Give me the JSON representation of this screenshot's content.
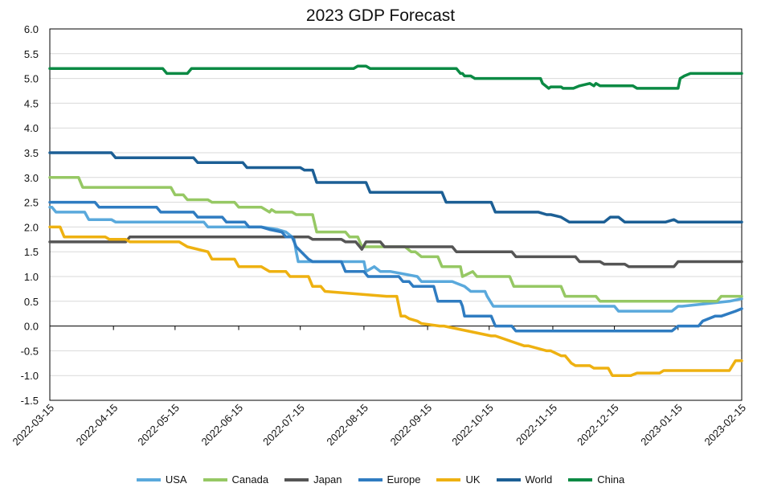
{
  "chart_data": {
    "type": "line",
    "title": "2023 GDP Forecast",
    "xlabel": "",
    "ylabel": "",
    "ylim": [
      -1.5,
      6.0
    ],
    "y_ticks": [
      "6.0",
      "5.5",
      "5.0",
      "4.5",
      "4.0",
      "3.5",
      "3.0",
      "2.5",
      "2.0",
      "1.5",
      "1.0",
      "0.5",
      "0.0",
      "-0.5",
      "-1.0",
      "-1.5"
    ],
    "x_ticks": [
      "2022-03-15",
      "2022-04-15",
      "2022-05-15",
      "2022-06-15",
      "2022-07-15",
      "2022-08-15",
      "2022-09-15",
      "2022-10-15",
      "2022-11-15",
      "2022-12-15",
      "2023-01-15",
      "2023-02-15"
    ],
    "grid": "horizontal",
    "legend_position": "bottom",
    "series": [
      {
        "name": "USA",
        "color": "#5aa9dc",
        "x": [
          "2022-03-15",
          "2022-03-16",
          "2022-03-18",
          "2022-04-01",
          "2022-04-03",
          "2022-04-14",
          "2022-04-16",
          "2022-05-29",
          "2022-05-31",
          "2022-06-26",
          "2022-07-04",
          "2022-07-08",
          "2022-07-11",
          "2022-07-12",
          "2022-07-13",
          "2022-07-14",
          "2022-08-15",
          "2022-08-16",
          "2022-08-20",
          "2022-08-23",
          "2022-08-28",
          "2022-09-10",
          "2022-09-12",
          "2022-09-27",
          "2022-09-30",
          "2022-10-03",
          "2022-10-06",
          "2022-10-13",
          "2022-10-14",
          "2022-10-17",
          "2022-12-15",
          "2022-12-17",
          "2023-01-10",
          "2023-01-12",
          "2023-01-15",
          "2023-01-17",
          "2023-02-09",
          "2023-02-15"
        ],
        "values": [
          2.4,
          2.4,
          2.3,
          2.3,
          2.15,
          2.15,
          2.1,
          2.1,
          2.0,
          2.0,
          1.95,
          1.9,
          1.8,
          1.75,
          1.5,
          1.3,
          1.3,
          1.1,
          1.2,
          1.1,
          1.1,
          1.0,
          0.9,
          0.9,
          0.85,
          0.8,
          0.7,
          0.7,
          0.6,
          0.4,
          0.4,
          0.3,
          0.3,
          0.3,
          0.4,
          0.4,
          0.5,
          0.55
        ]
      },
      {
        "name": "Canada",
        "color": "#96c864",
        "x": [
          "2022-03-15",
          "2022-03-29",
          "2022-03-31",
          "2022-05-13",
          "2022-05-15",
          "2022-05-19",
          "2022-05-21",
          "2022-05-31",
          "2022-06-02",
          "2022-06-13",
          "2022-06-15",
          "2022-06-26",
          "2022-06-30",
          "2022-07-01",
          "2022-07-03",
          "2022-07-11",
          "2022-07-13",
          "2022-07-21",
          "2022-07-23",
          "2022-08-06",
          "2022-08-08",
          "2022-08-12",
          "2022-08-14",
          "2022-09-04",
          "2022-09-07",
          "2022-09-09",
          "2022-09-12",
          "2022-09-20",
          "2022-09-22",
          "2022-10-01",
          "2022-10-02",
          "2022-10-07",
          "2022-10-09",
          "2022-10-25",
          "2022-10-27",
          "2022-11-19",
          "2022-11-21",
          "2022-12-06",
          "2022-12-08",
          "2023-02-03",
          "2023-02-05",
          "2023-02-15"
        ],
        "values": [
          3.0,
          3.0,
          2.8,
          2.8,
          2.65,
          2.65,
          2.55,
          2.55,
          2.5,
          2.5,
          2.4,
          2.4,
          2.3,
          2.35,
          2.3,
          2.3,
          2.25,
          2.25,
          1.9,
          1.9,
          1.8,
          1.8,
          1.6,
          1.6,
          1.5,
          1.5,
          1.4,
          1.4,
          1.2,
          1.2,
          1.0,
          1.1,
          1.0,
          1.0,
          0.8,
          0.8,
          0.6,
          0.6,
          0.5,
          0.5,
          0.6,
          0.6
        ]
      },
      {
        "name": "Japan",
        "color": "#555555",
        "x": [
          "2022-03-15",
          "2022-04-21",
          "2022-04-23",
          "2022-07-19",
          "2022-07-21",
          "2022-08-04",
          "2022-08-06",
          "2022-08-11",
          "2022-08-13",
          "2022-08-14",
          "2022-08-16",
          "2022-08-23",
          "2022-08-25",
          "2022-09-27",
          "2022-09-29",
          "2022-10-26",
          "2022-10-28",
          "2022-11-26",
          "2022-11-28",
          "2022-12-08",
          "2022-12-10",
          "2022-12-20",
          "2022-12-22",
          "2023-01-13",
          "2023-01-15",
          "2023-02-15"
        ],
        "values": [
          1.7,
          1.7,
          1.8,
          1.8,
          1.75,
          1.75,
          1.7,
          1.7,
          1.6,
          1.55,
          1.7,
          1.7,
          1.6,
          1.6,
          1.5,
          1.5,
          1.4,
          1.4,
          1.3,
          1.3,
          1.25,
          1.25,
          1.2,
          1.2,
          1.3,
          1.3
        ]
      },
      {
        "name": "Europe",
        "color": "#2f7cc1",
        "x": [
          "2022-03-15",
          "2022-04-06",
          "2022-04-08",
          "2022-05-06",
          "2022-05-08",
          "2022-05-24",
          "2022-05-26",
          "2022-06-07",
          "2022-06-09",
          "2022-06-18",
          "2022-06-20",
          "2022-06-26",
          "2022-06-30",
          "2022-07-06",
          "2022-07-08",
          "2022-07-11",
          "2022-07-13",
          "2022-07-19",
          "2022-07-21",
          "2022-08-04",
          "2022-08-06",
          "2022-08-15",
          "2022-08-17",
          "2022-09-01",
          "2022-09-03",
          "2022-09-06",
          "2022-09-08",
          "2022-09-18",
          "2022-09-20",
          "2022-10-01",
          "2022-10-02",
          "2022-10-03",
          "2022-10-05",
          "2022-10-16",
          "2022-10-18",
          "2022-10-26",
          "2022-10-28",
          "2023-01-12",
          "2023-01-15",
          "2023-01-25",
          "2023-01-27",
          "2023-02-02",
          "2023-02-05",
          "2023-02-12",
          "2023-02-15"
        ],
        "values": [
          2.5,
          2.5,
          2.4,
          2.4,
          2.3,
          2.3,
          2.2,
          2.2,
          2.1,
          2.1,
          2.0,
          2.0,
          1.95,
          1.9,
          1.8,
          1.8,
          1.6,
          1.35,
          1.3,
          1.3,
          1.1,
          1.1,
          1.0,
          1.0,
          0.9,
          0.9,
          0.8,
          0.8,
          0.5,
          0.5,
          0.4,
          0.2,
          0.2,
          0.2,
          0.0,
          0.0,
          -0.1,
          -0.1,
          0.0,
          0.0,
          0.1,
          0.2,
          0.2,
          0.3,
          0.35
        ]
      },
      {
        "name": "UK",
        "color": "#eeb111",
        "x": [
          "2022-03-15",
          "2022-03-20",
          "2022-03-22",
          "2022-04-11",
          "2022-04-13",
          "2022-04-21",
          "2022-04-23",
          "2022-05-17",
          "2022-05-21",
          "2022-05-31",
          "2022-06-02",
          "2022-06-13",
          "2022-06-15",
          "2022-06-26",
          "2022-06-30",
          "2022-07-08",
          "2022-07-10",
          "2022-07-19",
          "2022-07-21",
          "2022-07-25",
          "2022-07-27",
          "2022-08-26",
          "2022-08-28",
          "2022-08-31",
          "2022-09-02",
          "2022-09-04",
          "2022-09-06",
          "2022-09-10",
          "2022-09-12",
          "2022-09-21",
          "2022-09-23",
          "2022-10-16",
          "2022-10-18",
          "2022-11-01",
          "2022-11-03",
          "2022-11-12",
          "2022-11-14",
          "2022-11-19",
          "2022-11-21",
          "2022-11-24",
          "2022-11-26",
          "2022-12-03",
          "2022-12-05",
          "2022-12-12",
          "2022-12-14",
          "2022-12-23",
          "2022-12-26",
          "2023-01-06",
          "2023-01-08",
          "2023-02-09",
          "2023-02-12",
          "2023-02-15"
        ],
        "values": [
          2.0,
          2.0,
          1.8,
          1.8,
          1.75,
          1.75,
          1.7,
          1.7,
          1.6,
          1.5,
          1.35,
          1.35,
          1.2,
          1.2,
          1.1,
          1.1,
          1.0,
          1.0,
          0.8,
          0.8,
          0.7,
          0.6,
          0.6,
          0.6,
          0.2,
          0.2,
          0.15,
          0.1,
          0.05,
          0.0,
          0.0,
          -0.2,
          -0.2,
          -0.4,
          -0.4,
          -0.5,
          -0.5,
          -0.6,
          -0.6,
          -0.75,
          -0.8,
          -0.8,
          -0.85,
          -0.85,
          -1.0,
          -1.0,
          -0.95,
          -0.95,
          -0.9,
          -0.9,
          -0.7,
          -0.7
        ]
      },
      {
        "name": "World",
        "color": "#1c5f95",
        "x": [
          "2022-03-15",
          "2022-04-14",
          "2022-04-16",
          "2022-05-24",
          "2022-05-26",
          "2022-06-17",
          "2022-06-19",
          "2022-07-15",
          "2022-07-17",
          "2022-07-21",
          "2022-07-23",
          "2022-08-16",
          "2022-08-18",
          "2022-09-22",
          "2022-09-24",
          "2022-10-16",
          "2022-10-18",
          "2022-11-01",
          "2022-11-08",
          "2022-11-12",
          "2022-11-14",
          "2022-11-19",
          "2022-11-23",
          "2022-12-10",
          "2022-12-13",
          "2022-12-17",
          "2022-12-20",
          "2023-01-05",
          "2023-01-09",
          "2023-01-13",
          "2023-01-15",
          "2023-02-15"
        ],
        "values": [
          3.5,
          3.5,
          3.4,
          3.4,
          3.3,
          3.3,
          3.2,
          3.2,
          3.15,
          3.15,
          2.9,
          2.9,
          2.7,
          2.7,
          2.5,
          2.5,
          2.3,
          2.3,
          2.3,
          2.25,
          2.25,
          2.2,
          2.1,
          2.1,
          2.2,
          2.2,
          2.1,
          2.1,
          2.1,
          2.15,
          2.1,
          2.1
        ]
      },
      {
        "name": "China",
        "color": "#0b8a44",
        "x": [
          "2022-03-15",
          "2022-05-09",
          "2022-05-11",
          "2022-05-21",
          "2022-05-23",
          "2022-08-10",
          "2022-08-12",
          "2022-08-16",
          "2022-08-18",
          "2022-09-29",
          "2022-10-01",
          "2022-10-02",
          "2022-10-03",
          "2022-10-06",
          "2022-10-08",
          "2022-11-09",
          "2022-11-10",
          "2022-11-13",
          "2022-11-14",
          "2022-11-19",
          "2022-11-20",
          "2022-11-25",
          "2022-11-28",
          "2022-12-03",
          "2022-12-05",
          "2022-12-06",
          "2022-12-08",
          "2022-12-10",
          "2022-12-24",
          "2022-12-26",
          "2023-01-15",
          "2023-01-16",
          "2023-01-18",
          "2023-01-21",
          "2023-02-15"
        ],
        "values": [
          5.2,
          5.2,
          5.1,
          5.1,
          5.2,
          5.2,
          5.25,
          5.25,
          5.2,
          5.2,
          5.1,
          5.1,
          5.05,
          5.05,
          5.0,
          5.0,
          4.9,
          4.8,
          4.83,
          4.83,
          4.8,
          4.8,
          4.85,
          4.9,
          4.85,
          4.9,
          4.85,
          4.85,
          4.85,
          4.8,
          4.8,
          5.0,
          5.05,
          5.1,
          5.1
        ]
      }
    ]
  }
}
